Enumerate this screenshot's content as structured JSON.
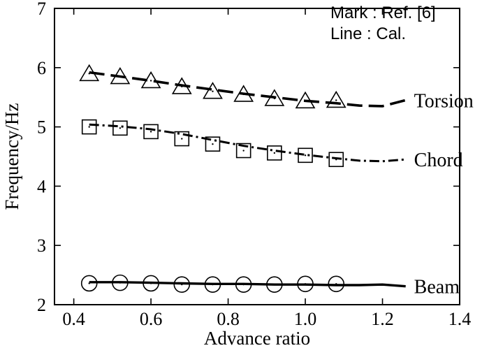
{
  "chart_data": {
    "type": "line",
    "title": "",
    "xlabel": "Advance ratio",
    "ylabel": "Frequency/Hz",
    "xlim": [
      0.35,
      1.4
    ],
    "ylim": [
      2,
      7
    ],
    "xticks": [
      "0.4",
      "0.6",
      "0.8",
      "1.0",
      "1.2",
      "1.4"
    ],
    "yticks": [
      "2",
      "3",
      "4",
      "5",
      "6",
      "7"
    ],
    "grid": false,
    "legend": {
      "placement": "top-right",
      "mark_line": "Mark : Ref. [6]",
      "line_line": "Line : Cal."
    },
    "series": [
      {
        "name": "Torsion",
        "line_style": "dashed",
        "marker": "triangle",
        "calc": {
          "x": [
            0.44,
            0.52,
            0.6,
            0.68,
            0.76,
            0.84,
            0.92,
            1.0,
            1.08,
            1.14,
            1.2,
            1.26
          ],
          "y": [
            5.92,
            5.85,
            5.78,
            5.7,
            5.63,
            5.56,
            5.5,
            5.44,
            5.4,
            5.36,
            5.35,
            5.45
          ]
        },
        "ref": {
          "x": [
            0.44,
            0.52,
            0.6,
            0.68,
            0.76,
            0.84,
            0.92,
            1.0,
            1.08
          ],
          "y": [
            5.9,
            5.85,
            5.78,
            5.68,
            5.6,
            5.55,
            5.48,
            5.44,
            5.45
          ]
        }
      },
      {
        "name": "Chord",
        "line_style": "dash-dot",
        "marker": "square",
        "calc": {
          "x": [
            0.44,
            0.52,
            0.6,
            0.68,
            0.76,
            0.84,
            0.92,
            1.0,
            1.08,
            1.14,
            1.2,
            1.26
          ],
          "y": [
            5.04,
            5.01,
            4.96,
            4.88,
            4.78,
            4.68,
            4.6,
            4.53,
            4.47,
            4.43,
            4.42,
            4.45
          ]
        },
        "ref": {
          "x": [
            0.44,
            0.52,
            0.6,
            0.68,
            0.76,
            0.84,
            0.92,
            1.0,
            1.08
          ],
          "y": [
            5.0,
            4.98,
            4.92,
            4.8,
            4.71,
            4.6,
            4.56,
            4.52,
            4.45
          ]
        }
      },
      {
        "name": "Beam",
        "line_style": "solid",
        "marker": "circle",
        "calc": {
          "x": [
            0.44,
            0.52,
            0.6,
            0.68,
            0.76,
            0.84,
            0.92,
            1.0,
            1.08,
            1.14,
            1.2,
            1.26
          ],
          "y": [
            2.38,
            2.38,
            2.37,
            2.36,
            2.35,
            2.35,
            2.34,
            2.34,
            2.33,
            2.33,
            2.34,
            2.31
          ]
        },
        "ref": {
          "x": [
            0.44,
            0.52,
            0.6,
            0.68,
            0.76,
            0.84,
            0.92,
            1.0,
            1.08
          ],
          "y": [
            2.36,
            2.37,
            2.36,
            2.34,
            2.34,
            2.34,
            2.34,
            2.35,
            2.35
          ]
        }
      }
    ]
  }
}
